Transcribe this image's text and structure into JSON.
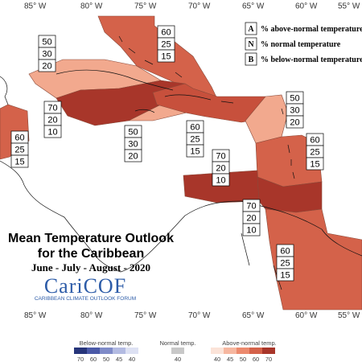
{
  "map": {
    "title_line1": "Mean Temperature Outlook",
    "title_line2": "for the Caribbean",
    "period": "June - July - August - 2020",
    "brand": "CariCOF",
    "brand_tagline": "CARIBBEAN CLIMATE OUTLOOK FORUM",
    "longitude_labels": [
      "85° W",
      "80° W",
      "75° W",
      "70° W",
      "65° W",
      "60° W",
      "55° W"
    ],
    "key": [
      {
        "letter": "A",
        "text": "% above-normal temperature"
      },
      {
        "letter": "N",
        "text": "% normal temperature"
      },
      {
        "letter": "B",
        "text": "% below-normal temperature"
      }
    ],
    "regions": [
      {
        "id": "bahamas",
        "probs": [
          60,
          25,
          15
        ],
        "color": "#d4624a"
      },
      {
        "id": "cuba-west",
        "probs": [
          50,
          30,
          20
        ],
        "color": "#f2a98e"
      },
      {
        "id": "cuba-cayman",
        "probs": [
          70,
          20,
          10
        ],
        "color": "#a8362a"
      },
      {
        "id": "jamaica",
        "probs": [
          50,
          30,
          20
        ],
        "color": "#f2a98e"
      },
      {
        "id": "hispaniola",
        "probs": [
          60,
          25,
          15
        ],
        "color": "#c7503c"
      },
      {
        "id": "northern-leewards",
        "probs": [
          50,
          30,
          20
        ],
        "color": "#f2a98e"
      },
      {
        "id": "central-america",
        "probs": [
          60,
          25,
          15
        ],
        "color": "#d4624a"
      },
      {
        "id": "lesser-antilles",
        "probs": [
          60,
          25,
          15
        ],
        "color": "#d4624a"
      },
      {
        "id": "abc-islands",
        "probs": [
          70,
          20,
          10
        ],
        "color": "#a8362a"
      },
      {
        "id": "trinidad",
        "probs": [
          70,
          20,
          10
        ],
        "color": "#a8362a"
      },
      {
        "id": "guianas",
        "probs": [
          60,
          25,
          15
        ],
        "color": "#d4624a"
      }
    ],
    "colorbar": {
      "below_label": "Below-normal temp.",
      "normal_label": "Normal temp.",
      "above_label": "Above-normal temp.",
      "below_ticks": [
        "70",
        "60",
        "50",
        "45",
        "40"
      ],
      "normal_ticks": [
        "40"
      ],
      "above_ticks": [
        "40",
        "45",
        "50",
        "60",
        "70"
      ],
      "below_colors": [
        "#27357a",
        "#4b5aa8",
        "#7f8bc8",
        "#b3bbe2",
        "#dde1f3"
      ],
      "normal_color": "#c8c8c8",
      "above_colors": [
        "#fbe3d8",
        "#f6b7a0",
        "#ec8a6e",
        "#d4624a",
        "#a8362a"
      ]
    }
  }
}
